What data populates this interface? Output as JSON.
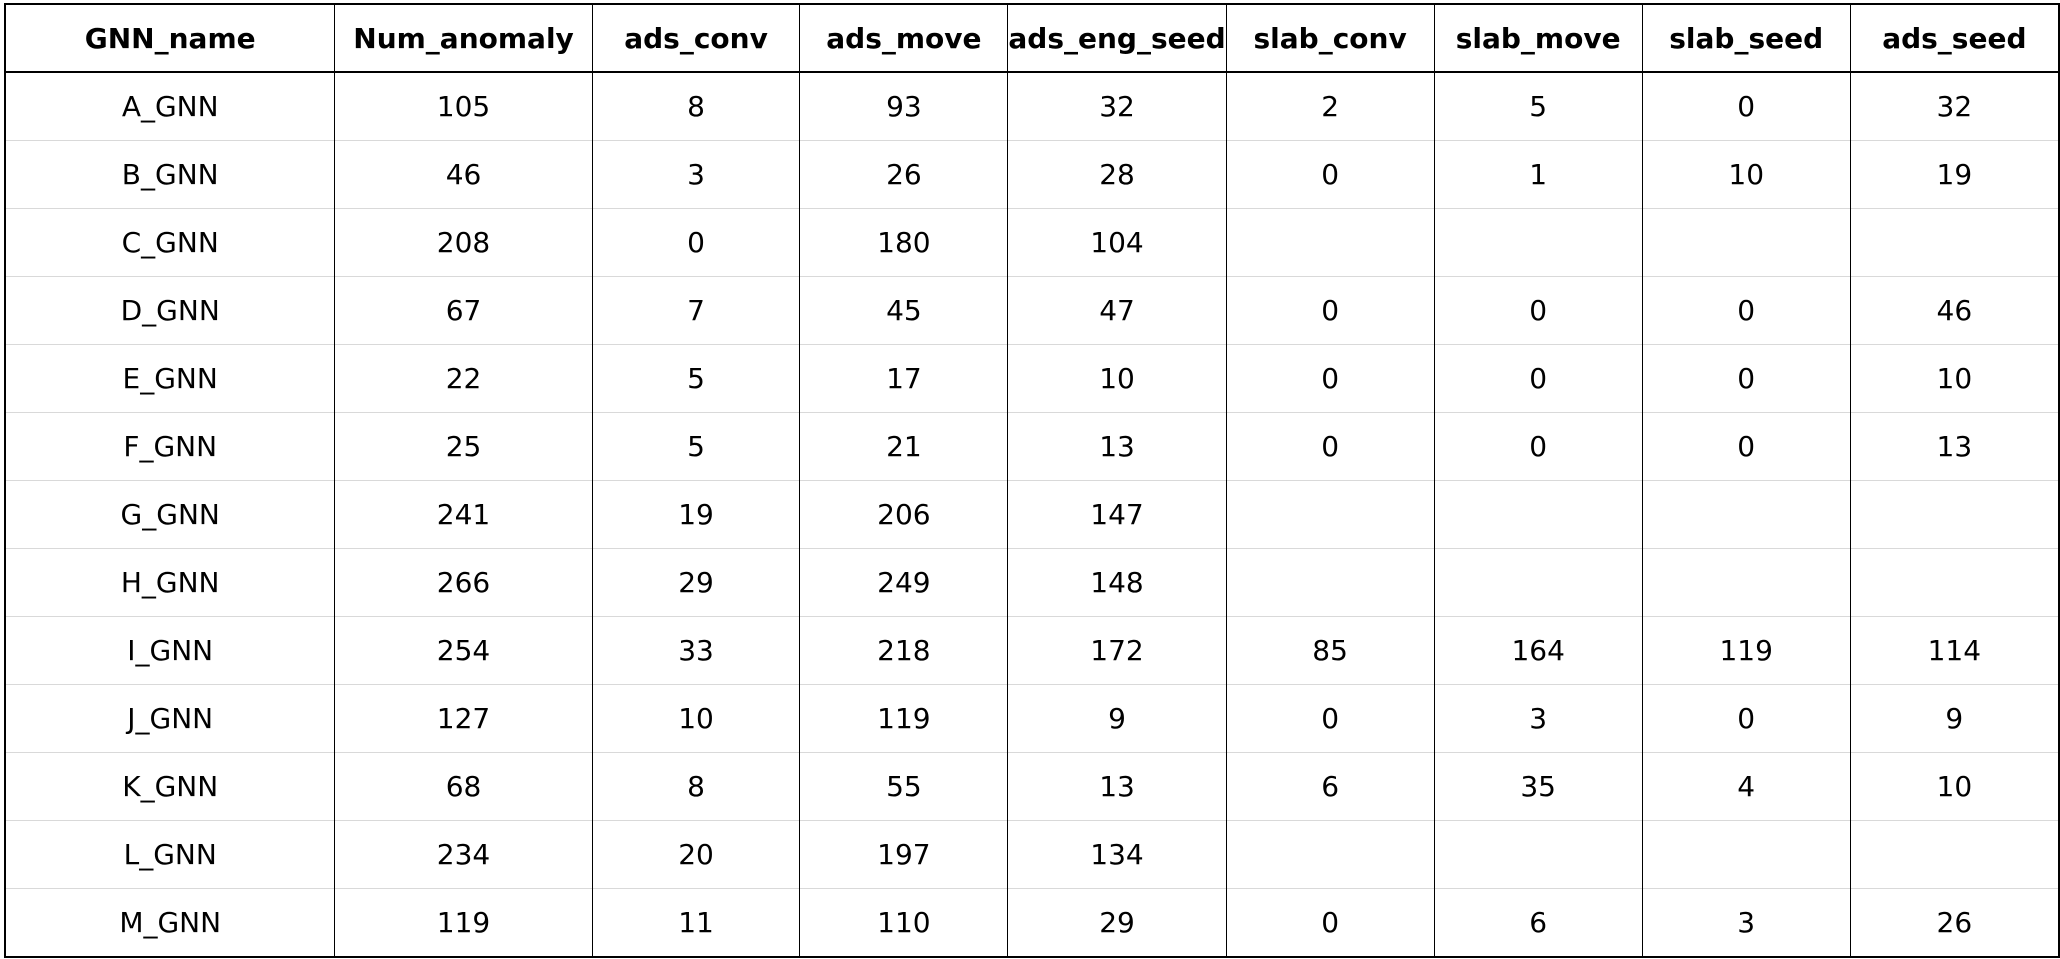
{
  "table": {
    "columns": [
      "GNN_name",
      "Num_anomaly",
      "ads_conv",
      "ads_move",
      "ads_eng_seed",
      "slab_conv",
      "slab_move",
      "slab_seed",
      "ads_seed"
    ],
    "rows": [
      [
        "A_GNN",
        "105",
        "8",
        "93",
        "32",
        "2",
        "5",
        "0",
        "32"
      ],
      [
        "B_GNN",
        "46",
        "3",
        "26",
        "28",
        "0",
        "1",
        "10",
        "19"
      ],
      [
        "C_GNN",
        "208",
        "0",
        "180",
        "104",
        "",
        "",
        "",
        ""
      ],
      [
        "D_GNN",
        "67",
        "7",
        "45",
        "47",
        "0",
        "0",
        "0",
        "46"
      ],
      [
        "E_GNN",
        "22",
        "5",
        "17",
        "10",
        "0",
        "0",
        "0",
        "10"
      ],
      [
        "F_GNN",
        "25",
        "5",
        "21",
        "13",
        "0",
        "0",
        "0",
        "13"
      ],
      [
        "G_GNN",
        "241",
        "19",
        "206",
        "147",
        "",
        "",
        "",
        ""
      ],
      [
        "H_GNN",
        "266",
        "29",
        "249",
        "148",
        "",
        "",
        "",
        ""
      ],
      [
        "I_GNN",
        "254",
        "33",
        "218",
        "172",
        "85",
        "164",
        "119",
        "114"
      ],
      [
        "J_GNN",
        "127",
        "10",
        "119",
        "9",
        "0",
        "3",
        "0",
        "9"
      ],
      [
        "K_GNN",
        "68",
        "8",
        "55",
        "13",
        "6",
        "35",
        "4",
        "10"
      ],
      [
        "L_GNN",
        "234",
        "20",
        "197",
        "134",
        "",
        "",
        "",
        ""
      ],
      [
        "M_GNN",
        "119",
        "11",
        "110",
        "29",
        "0",
        "6",
        "3",
        "26"
      ]
    ]
  }
}
